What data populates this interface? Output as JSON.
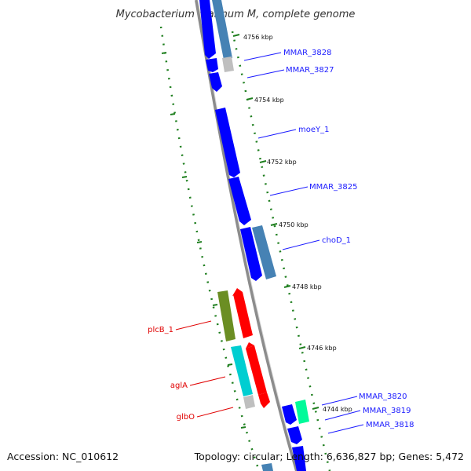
{
  "title": "Mycobacterium marinum M, complete genome",
  "accession": "Accession: NC_010612",
  "summary": "Topology: circular; Length: 6,636,827 bp; Genes: 5,472",
  "colors": {
    "backbone": "#8c8c8c",
    "tick": "#1f7f1f",
    "cds": "#0000ff",
    "cds_alt": "#4682b4",
    "label_blue": "#1a1aff",
    "label_red": "#e00000",
    "red_gene": "#ff0000",
    "green_gene": "#6b8e23",
    "cyan_gene": "#00ced1",
    "mint_gene": "#00fa9a",
    "gray_gene": "#bfbfbf"
  },
  "kbp_labels": [
    "4756 kbp",
    "4754 kbp",
    "4752 kbp",
    "4750 kbp",
    "4748 kbp",
    "4746 kbp",
    "4744 kbp"
  ],
  "gene_labels": [
    {
      "text": "MMAR_3828",
      "color": "blue"
    },
    {
      "text": "MMAR_3827",
      "color": "blue"
    },
    {
      "text": "moeY_1",
      "color": "blue"
    },
    {
      "text": "MMAR_3825",
      "color": "blue"
    },
    {
      "text": "choD_1",
      "color": "blue"
    },
    {
      "text": "plcB_1",
      "color": "red"
    },
    {
      "text": "aglA",
      "color": "red"
    },
    {
      "text": "glbO",
      "color": "red"
    },
    {
      "text": "MMAR_3820",
      "color": "blue"
    },
    {
      "text": "MMAR_3819",
      "color": "blue"
    },
    {
      "text": "MMAR_3818",
      "color": "blue"
    }
  ]
}
